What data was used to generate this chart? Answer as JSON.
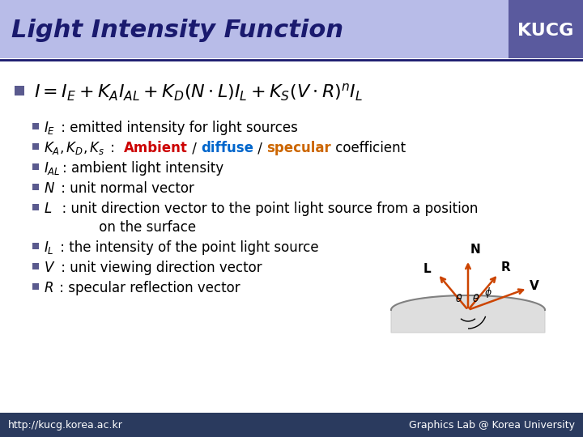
{
  "title": "Light Intensity Function",
  "title_color": "#1a1a6e",
  "title_bg_color": "#b8bce8",
  "kucg_bg_color": "#5a5a9e",
  "kucg_text": "KUCG",
  "header_line_color": "#1a1a6e",
  "formula": "$I = I_E + K_A I_{AL} + K_D (N \\cdot L) I_L + K_S (V \\cdot R)^n I_L$",
  "bullet_color": "#5a5a8e",
  "footer_bg_color": "#2a3a5e",
  "footer_left": "http://kucg.korea.ac.kr",
  "footer_right": "Graphics Lab @ Korea University",
  "bg_color": "#ffffff",
  "arrow_color": "#cc4400",
  "surface_color": "#c8c8c8"
}
